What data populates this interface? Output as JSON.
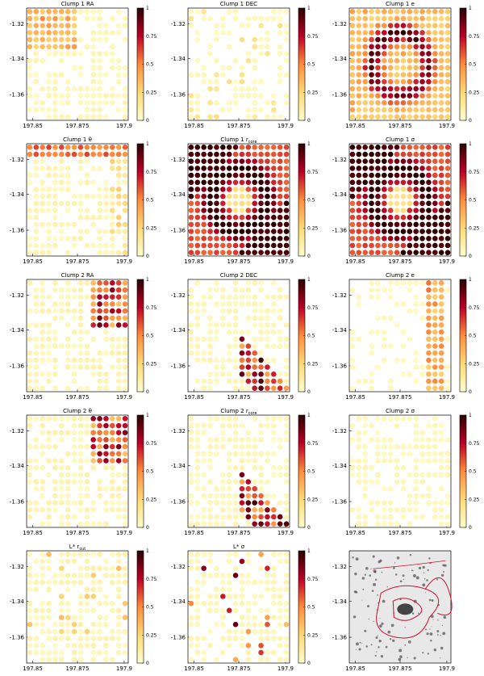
{
  "chart_data": [
    {
      "type": "heatmap",
      "title": "Clump 1 RA",
      "pattern": "clumps_topleft",
      "xticks": [
        "197.85",
        "197.875",
        "197.9"
      ],
      "yticks": [
        "-1.32",
        "-1.34",
        "-1.36"
      ],
      "cbar_ticks": [
        "0",
        "0.25",
        "0.5",
        "0.75",
        "1"
      ],
      "vmin": 0,
      "vmax": 1
    },
    {
      "type": "heatmap",
      "title": "Clump 1 DEC",
      "pattern": "sparse_low",
      "xticks": [
        "197.85",
        "197.875",
        "197.9"
      ],
      "yticks": [
        "-1.32",
        "-1.34",
        "-1.36"
      ],
      "cbar_ticks": [
        "0",
        "0.25",
        "0.5",
        "0.75",
        "1"
      ],
      "vmin": 0,
      "vmax": 1
    },
    {
      "type": "heatmap",
      "title": "Clump 1 e",
      "pattern": "ring_high",
      "xticks": [
        "197.85",
        "197.875",
        "197.9"
      ],
      "yticks": [
        "-1.32",
        "-1.34",
        "-1.36"
      ],
      "cbar_ticks": [
        "0",
        "0.25",
        "0.5",
        "0.75",
        "1"
      ],
      "vmin": 0,
      "vmax": 1
    },
    {
      "type": "heatmap",
      "title": "Clump 1 θ",
      "pattern": "top_edge",
      "xticks": [
        "197.85",
        "197.875",
        "197.9"
      ],
      "yticks": [
        "-1.32",
        "-1.34",
        "-1.36"
      ],
      "cbar_ticks": [
        "0",
        "0.25",
        "0.5",
        "0.75",
        "1"
      ],
      "vmin": 0,
      "vmax": 1
    },
    {
      "type": "heatmap",
      "title": "Clump 1 r",
      "title_sub": "core",
      "pattern": "ring_very_high",
      "xticks": [
        "197.85",
        "197.875",
        "197.9"
      ],
      "yticks": [
        "-1.32",
        "-1.34",
        "-1.36"
      ],
      "cbar_ticks": [
        "0",
        "0.25",
        "0.5",
        "0.75",
        "1"
      ],
      "vmin": 0,
      "vmax": 1
    },
    {
      "type": "heatmap",
      "title": "Clump 1 σ",
      "pattern": "ring_very_high",
      "xticks": [
        "197.85",
        "197.875",
        "197.9"
      ],
      "yticks": [
        "-1.32",
        "-1.34",
        "-1.36"
      ],
      "cbar_ticks": [
        "0",
        "0.25",
        "0.5",
        "0.75",
        "1"
      ],
      "vmin": 0,
      "vmax": 1
    },
    {
      "type": "heatmap",
      "title": "Clump 2 RA",
      "pattern": "topright_streak",
      "xticks": [
        "197.85",
        "197.875",
        "197.9"
      ],
      "yticks": [
        "-1.32",
        "-1.34",
        "-1.36"
      ],
      "cbar_ticks": [
        "0",
        "0.25",
        "0.5",
        "0.75",
        "1"
      ],
      "vmin": 0,
      "vmax": 1
    },
    {
      "type": "heatmap",
      "title": "Clump 2 DEC",
      "pattern": "diagonal",
      "xticks": [
        "197.85",
        "197.875",
        "197.9"
      ],
      "yticks": [
        "-1.32",
        "-1.34",
        "-1.36"
      ],
      "cbar_ticks": [
        "0",
        "0.25",
        "0.5",
        "0.75",
        "1"
      ],
      "vmin": 0,
      "vmax": 1
    },
    {
      "type": "heatmap",
      "title": "Clump 2 e",
      "pattern": "right_column",
      "xticks": [
        "197.85",
        "197.875",
        "197.9"
      ],
      "yticks": [
        "-1.32",
        "-1.34",
        "-1.36"
      ],
      "cbar_ticks": [
        "0",
        "0.25",
        "0.5",
        "0.75",
        "1"
      ],
      "vmin": 0,
      "vmax": 1
    },
    {
      "type": "heatmap",
      "title": "Clump 2 θ",
      "pattern": "topright_streak",
      "xticks": [
        "197.85",
        "197.875",
        "197.9"
      ],
      "yticks": [
        "-1.32",
        "-1.34",
        "-1.36"
      ],
      "cbar_ticks": [
        "0",
        "0.25",
        "0.5",
        "0.75",
        "1"
      ],
      "vmin": 0,
      "vmax": 1
    },
    {
      "type": "heatmap",
      "title": "Clump 2 r",
      "title_sub": "core",
      "pattern": "diagonal",
      "xticks": [
        "197.85",
        "197.875",
        "197.9"
      ],
      "yticks": [
        "-1.32",
        "-1.34",
        "-1.36"
      ],
      "cbar_ticks": [
        "0",
        "0.25",
        "0.5",
        "0.75",
        "1"
      ],
      "vmin": 0,
      "vmax": 1
    },
    {
      "type": "heatmap",
      "title": "Clump 2 σ",
      "pattern": "faint",
      "xticks": [
        "197.85",
        "197.875",
        "197.9"
      ],
      "yticks": [
        "-1.32",
        "-1.34",
        "-1.36"
      ],
      "cbar_ticks": [
        "0",
        "0.25",
        "0.5",
        "0.75",
        "1"
      ],
      "vmin": 0,
      "vmax": 1
    },
    {
      "type": "heatmap",
      "title": "L* r",
      "title_sub": "cut",
      "pattern": "scatter_low",
      "xticks": [
        "197.85",
        "197.875",
        "197.9"
      ],
      "yticks": [
        "-1.32",
        "-1.34",
        "-1.36"
      ],
      "cbar_ticks": [
        "0",
        "0.25",
        "0.5",
        "0.75",
        "1"
      ],
      "vmin": 0,
      "vmax": 1
    },
    {
      "type": "heatmap",
      "title": "L* σ",
      "pattern": "scatter_hot",
      "xticks": [
        "197.85",
        "197.875",
        "197.9"
      ],
      "yticks": [
        "-1.32",
        "-1.34",
        "-1.36"
      ],
      "cbar_ticks": [
        "0",
        "0.25",
        "0.5",
        "0.75",
        "1"
      ],
      "vmin": 0,
      "vmax": 1
    },
    {
      "type": "image",
      "title": "",
      "xticks": [
        "197.85",
        "197.875",
        "197.9"
      ],
      "yticks": [
        "-1.32",
        "-1.34",
        "-1.36"
      ],
      "contour_color": "#cc1133"
    }
  ],
  "colors": {
    "low": "#ffffcc",
    "mid": "#fd8d3c",
    "high": "#bd0026",
    "top": "#000000",
    "contour": "#cc1133"
  }
}
